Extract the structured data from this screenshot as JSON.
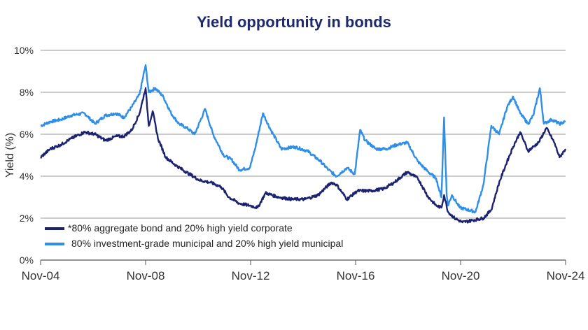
{
  "chart_data": {
    "type": "line",
    "title": "Yield opportunity in bonds",
    "xlabel": "",
    "ylabel": "Yield (%)",
    "ylim": [
      0,
      10
    ],
    "y_ticks": [
      0,
      2,
      4,
      6,
      8,
      10
    ],
    "y_tick_labels": [
      "0%",
      "2%",
      "4%",
      "6%",
      "8%",
      "10%"
    ],
    "x_ticks": [
      2004.83,
      2008.83,
      2012.83,
      2016.83,
      2020.83,
      2024.83
    ],
    "x_tick_labels": [
      "Nov-04",
      "Nov-08",
      "Nov-12",
      "Nov-16",
      "Nov-20",
      "Nov-24"
    ],
    "xlim": [
      2004.83,
      2024.83
    ],
    "grid": "horizontal",
    "legend_position": "bottom-left",
    "series": [
      {
        "name": "*80% aggregate bond and 20% high yield corporate",
        "color": "#1b2370",
        "x": [
          2004.83,
          2005.2,
          2005.6,
          2006.0,
          2006.5,
          2006.9,
          2007.3,
          2007.7,
          2008.0,
          2008.3,
          2008.6,
          2008.83,
          2008.95,
          2009.1,
          2009.3,
          2009.6,
          2010.0,
          2010.5,
          2010.9,
          2011.3,
          2011.7,
          2012.0,
          2012.4,
          2012.8,
          2013.1,
          2013.4,
          2013.9,
          2014.4,
          2014.9,
          2015.4,
          2015.9,
          2016.1,
          2016.5,
          2016.9,
          2017.4,
          2017.9,
          2018.3,
          2018.8,
          2019.2,
          2019.6,
          2019.9,
          2020.1,
          2020.2,
          2020.35,
          2020.6,
          2020.9,
          2021.3,
          2021.7,
          2022.0,
          2022.3,
          2022.6,
          2022.83,
          2023.1,
          2023.4,
          2023.8,
          2024.1,
          2024.4,
          2024.6,
          2024.83
        ],
        "values": [
          4.9,
          5.3,
          5.5,
          5.8,
          6.1,
          6.0,
          5.7,
          5.9,
          5.9,
          6.2,
          7.0,
          8.2,
          6.4,
          7.1,
          5.8,
          4.9,
          4.5,
          4.1,
          3.8,
          3.7,
          3.5,
          3.0,
          2.7,
          2.6,
          2.5,
          3.2,
          3.0,
          2.9,
          2.9,
          3.1,
          3.7,
          3.6,
          2.9,
          3.3,
          3.3,
          3.4,
          3.7,
          4.2,
          3.9,
          3.0,
          2.6,
          2.5,
          3.1,
          2.3,
          2.0,
          1.8,
          1.9,
          2.0,
          2.4,
          3.7,
          4.7,
          5.4,
          6.1,
          5.2,
          5.6,
          6.3,
          5.6,
          4.9,
          5.3
        ]
      },
      {
        "name": "80% investment-grade municipal and 20% high yield municipal",
        "color": "#2e8ee8",
        "x": [
          2004.83,
          2005.2,
          2005.6,
          2006.0,
          2006.5,
          2006.9,
          2007.3,
          2007.7,
          2008.0,
          2008.3,
          2008.6,
          2008.83,
          2008.95,
          2009.2,
          2009.5,
          2009.8,
          2010.1,
          2010.4,
          2010.7,
          2011.1,
          2011.4,
          2011.8,
          2012.1,
          2012.4,
          2012.8,
          2013.0,
          2013.3,
          2013.6,
          2014.0,
          2014.5,
          2015.0,
          2015.5,
          2015.8,
          2016.1,
          2016.5,
          2016.8,
          2017.0,
          2017.2,
          2017.6,
          2018.0,
          2018.4,
          2018.8,
          2019.2,
          2019.6,
          2019.9,
          2020.0,
          2020.1,
          2020.2,
          2020.3,
          2020.35,
          2020.5,
          2020.8,
          2021.1,
          2021.4,
          2021.7,
          2022.0,
          2022.3,
          2022.6,
          2022.83,
          2023.1,
          2023.4,
          2023.6,
          2023.85,
          2024.0,
          2024.3,
          2024.6,
          2024.83
        ],
        "values": [
          6.4,
          6.6,
          6.7,
          6.9,
          7.0,
          6.5,
          6.9,
          7.0,
          6.8,
          7.3,
          7.9,
          9.3,
          8.0,
          8.2,
          7.8,
          7.0,
          6.5,
          6.3,
          6.0,
          7.2,
          6.0,
          5.0,
          4.8,
          4.3,
          4.4,
          5.3,
          7.0,
          6.2,
          5.3,
          5.4,
          5.2,
          4.7,
          4.3,
          4.0,
          4.4,
          4.1,
          6.2,
          5.7,
          5.3,
          5.3,
          5.5,
          5.6,
          4.7,
          4.2,
          3.9,
          3.4,
          3.0,
          6.8,
          3.1,
          2.6,
          3.1,
          2.5,
          2.4,
          2.3,
          3.6,
          6.4,
          6.0,
          7.3,
          7.8,
          7.0,
          6.5,
          6.9,
          8.2,
          6.5,
          6.7,
          6.5,
          6.6
        ]
      }
    ]
  }
}
